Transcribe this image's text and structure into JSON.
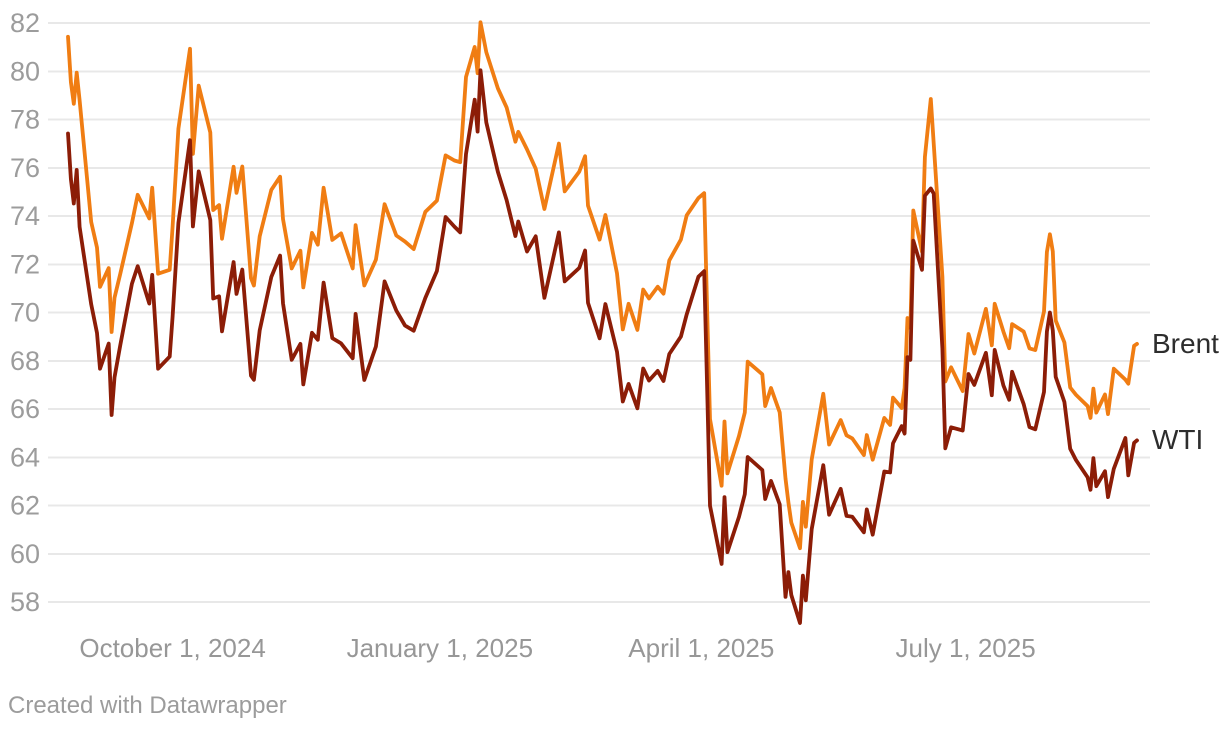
{
  "footer": {
    "attribution": "Created with Datawrapper"
  },
  "chart_data": {
    "type": "line",
    "title": "",
    "xlabel": "",
    "ylabel": "",
    "grid": "horizontal",
    "grid_color": "#e8e8e8",
    "tick_label_color": "#9c9c9c",
    "legend_position": "right-of-line-ends",
    "legend_text_color": "#2d2d2d",
    "ylim": [
      58,
      82
    ],
    "yticks": [
      58,
      60,
      62,
      64,
      66,
      68,
      70,
      72,
      74,
      76,
      78,
      80,
      82
    ],
    "xticks": [
      {
        "date": "2024-10-01",
        "label": "October 1, 2024"
      },
      {
        "date": "2025-01-01",
        "label": "January 1, 2025"
      },
      {
        "date": "2025-04-01",
        "label": "April 1, 2025"
      },
      {
        "date": "2025-07-01",
        "label": "July 1, 2025"
      }
    ],
    "x": [
      "2024-08-26",
      "2024-08-27",
      "2024-08-28",
      "2024-08-29",
      "2024-08-30",
      "2024-09-03",
      "2024-09-05",
      "2024-09-06",
      "2024-09-09",
      "2024-09-10",
      "2024-09-11",
      "2024-09-13",
      "2024-09-17",
      "2024-09-19",
      "2024-09-23",
      "2024-09-24",
      "2024-09-26",
      "2024-09-30",
      "2024-10-01",
      "2024-10-03",
      "2024-10-07",
      "2024-10-08",
      "2024-10-10",
      "2024-10-14",
      "2024-10-15",
      "2024-10-17",
      "2024-10-18",
      "2024-10-22",
      "2024-10-23",
      "2024-10-25",
      "2024-10-28",
      "2024-10-29",
      "2024-10-31",
      "2024-11-04",
      "2024-11-07",
      "2024-11-08",
      "2024-11-11",
      "2024-11-14",
      "2024-11-15",
      "2024-11-18",
      "2024-11-20",
      "2024-11-22",
      "2024-11-25",
      "2024-11-28",
      "2024-12-02",
      "2024-12-03",
      "2024-12-06",
      "2024-12-10",
      "2024-12-13",
      "2024-12-17",
      "2024-12-20",
      "2024-12-23",
      "2024-12-27",
      "2024-12-31",
      "2025-01-03",
      "2025-01-06",
      "2025-01-08",
      "2025-01-10",
      "2025-01-13",
      "2025-01-14",
      "2025-01-15",
      "2025-01-17",
      "2025-01-21",
      "2025-01-24",
      "2025-01-27",
      "2025-01-28",
      "2025-01-31",
      "2025-02-03",
      "2025-02-06",
      "2025-02-11",
      "2025-02-13",
      "2025-02-18",
      "2025-02-20",
      "2025-02-21",
      "2025-02-25",
      "2025-02-27",
      "2025-03-03",
      "2025-03-05",
      "2025-03-07",
      "2025-03-10",
      "2025-03-12",
      "2025-03-14",
      "2025-03-17",
      "2025-03-19",
      "2025-03-21",
      "2025-03-25",
      "2025-03-27",
      "2025-03-31",
      "2025-04-02",
      "2025-04-03",
      "2025-04-04",
      "2025-04-08",
      "2025-04-09",
      "2025-04-10",
      "2025-04-14",
      "2025-04-16",
      "2025-04-17",
      "2025-04-22",
      "2025-04-23",
      "2025-04-25",
      "2025-04-28",
      "2025-04-30",
      "2025-05-01",
      "2025-05-02",
      "2025-05-05",
      "2025-05-06",
      "2025-05-07",
      "2025-05-09",
      "2025-05-13",
      "2025-05-15",
      "2025-05-19",
      "2025-05-21",
      "2025-05-23",
      "2025-05-27",
      "2025-05-28",
      "2025-05-30",
      "2025-06-03",
      "2025-06-05",
      "2025-06-06",
      "2025-06-09",
      "2025-06-10",
      "2025-06-11",
      "2025-06-12",
      "2025-06-13",
      "2025-06-16",
      "2025-06-17",
      "2025-06-19",
      "2025-06-20",
      "2025-06-23",
      "2025-06-24",
      "2025-06-26",
      "2025-06-30",
      "2025-07-02",
      "2025-07-04",
      "2025-07-08",
      "2025-07-10",
      "2025-07-11",
      "2025-07-14",
      "2025-07-16",
      "2025-07-17",
      "2025-07-21",
      "2025-07-23",
      "2025-07-25",
      "2025-07-28",
      "2025-07-29",
      "2025-07-30",
      "2025-07-31",
      "2025-08-01",
      "2025-08-04",
      "2025-08-06",
      "2025-08-08",
      "2025-08-12",
      "2025-08-13",
      "2025-08-14",
      "2025-08-15",
      "2025-08-18",
      "2025-08-19",
      "2025-08-21",
      "2025-08-25",
      "2025-08-26",
      "2025-08-28",
      "2025-08-29"
    ],
    "series": [
      {
        "name": "Brent",
        "color": "#f07d13",
        "values": [
          81.43,
          79.55,
          78.65,
          79.94,
          78.8,
          73.75,
          72.69,
          71.06,
          71.84,
          69.19,
          70.61,
          71.61,
          73.7,
          74.88,
          73.9,
          75.17,
          71.61,
          71.77,
          73.56,
          77.62,
          80.93,
          76.58,
          79.4,
          77.46,
          74.25,
          74.45,
          73.06,
          76.04,
          74.96,
          76.05,
          71.42,
          71.12,
          73.16,
          75.08,
          75.63,
          73.87,
          71.83,
          72.56,
          71.04,
          73.3,
          72.81,
          75.17,
          73.01,
          73.28,
          71.83,
          73.62,
          71.12,
          72.19,
          74.49,
          73.19,
          72.94,
          72.63,
          74.17,
          74.64,
          76.51,
          76.3,
          76.23,
          79.76,
          81.01,
          79.92,
          82.03,
          80.79,
          79.29,
          78.5,
          77.08,
          77.49,
          76.76,
          75.96,
          74.29,
          77.0,
          75.02,
          75.84,
          76.48,
          74.43,
          73.02,
          74.04,
          71.62,
          69.3,
          70.36,
          69.28,
          70.95,
          70.58,
          71.07,
          70.78,
          72.16,
          73.02,
          74.03,
          74.74,
          74.95,
          70.14,
          65.58,
          62.82,
          65.48,
          63.33,
          64.88,
          65.85,
          67.96,
          67.44,
          66.12,
          66.87,
          65.86,
          63.12,
          62.13,
          61.29,
          60.23,
          62.15,
          61.12,
          63.91,
          66.63,
          64.53,
          65.54,
          64.91,
          64.78,
          64.09,
          64.92,
          63.9,
          65.63,
          65.34,
          66.47,
          66.04,
          66.87,
          69.77,
          69.36,
          74.23,
          72.52,
          76.45,
          78.85,
          77.01,
          71.48,
          67.14,
          67.73,
          66.74,
          69.11,
          68.3,
          70.15,
          68.64,
          70.36,
          69.21,
          68.52,
          69.52,
          69.21,
          68.51,
          68.44,
          70.04,
          72.51,
          73.24,
          72.53,
          69.67,
          68.76,
          66.89,
          66.59,
          66.12,
          65.63,
          66.84,
          65.85,
          66.6,
          65.79,
          67.67,
          67.22,
          67.05,
          68.62,
          68.7
        ]
      },
      {
        "name": "WTI",
        "color": "#8c1d07",
        "values": [
          77.42,
          75.53,
          74.52,
          75.91,
          73.55,
          70.34,
          69.15,
          67.67,
          68.71,
          65.75,
          67.31,
          68.65,
          71.19,
          71.92,
          70.37,
          71.56,
          67.67,
          68.17,
          69.83,
          73.71,
          77.14,
          73.57,
          75.85,
          73.83,
          70.58,
          70.67,
          69.22,
          72.09,
          70.77,
          71.78,
          67.38,
          67.21,
          69.26,
          71.47,
          72.36,
          70.38,
          68.04,
          68.7,
          67.02,
          69.16,
          68.87,
          71.24,
          68.94,
          68.72,
          68.1,
          69.94,
          67.2,
          68.59,
          71.29,
          70.08,
          69.46,
          69.24,
          70.6,
          71.72,
          73.96,
          73.56,
          73.32,
          76.57,
          78.82,
          77.5,
          80.04,
          77.88,
          75.83,
          74.66,
          73.17,
          73.77,
          72.53,
          73.16,
          70.61,
          73.32,
          71.29,
          71.85,
          72.57,
          70.4,
          68.93,
          70.35,
          68.37,
          66.31,
          67.04,
          66.03,
          67.68,
          67.18,
          67.58,
          67.16,
          68.28,
          69.0,
          69.92,
          71.48,
          71.71,
          66.95,
          61.99,
          59.58,
          62.35,
          60.07,
          61.53,
          62.47,
          64.01,
          63.47,
          62.27,
          63.02,
          62.05,
          58.21,
          59.24,
          58.29,
          57.13,
          59.09,
          58.07,
          61.02,
          63.67,
          61.62,
          62.69,
          61.57,
          61.53,
          60.89,
          61.84,
          60.79,
          63.41,
          63.37,
          64.58,
          65.29,
          64.98,
          68.15,
          68.04,
          72.98,
          71.77,
          74.84,
          75.14,
          74.93,
          68.51,
          64.37,
          65.24,
          65.11,
          67.45,
          67.0,
          68.33,
          66.57,
          68.45,
          66.98,
          66.38,
          67.54,
          66.2,
          65.25,
          65.16,
          66.71,
          69.21,
          70.0,
          69.26,
          67.33,
          66.29,
          64.35,
          63.88,
          63.17,
          62.65,
          63.96,
          62.8,
          63.42,
          62.35,
          63.52,
          64.8,
          63.25,
          64.6,
          64.7
        ]
      }
    ]
  }
}
